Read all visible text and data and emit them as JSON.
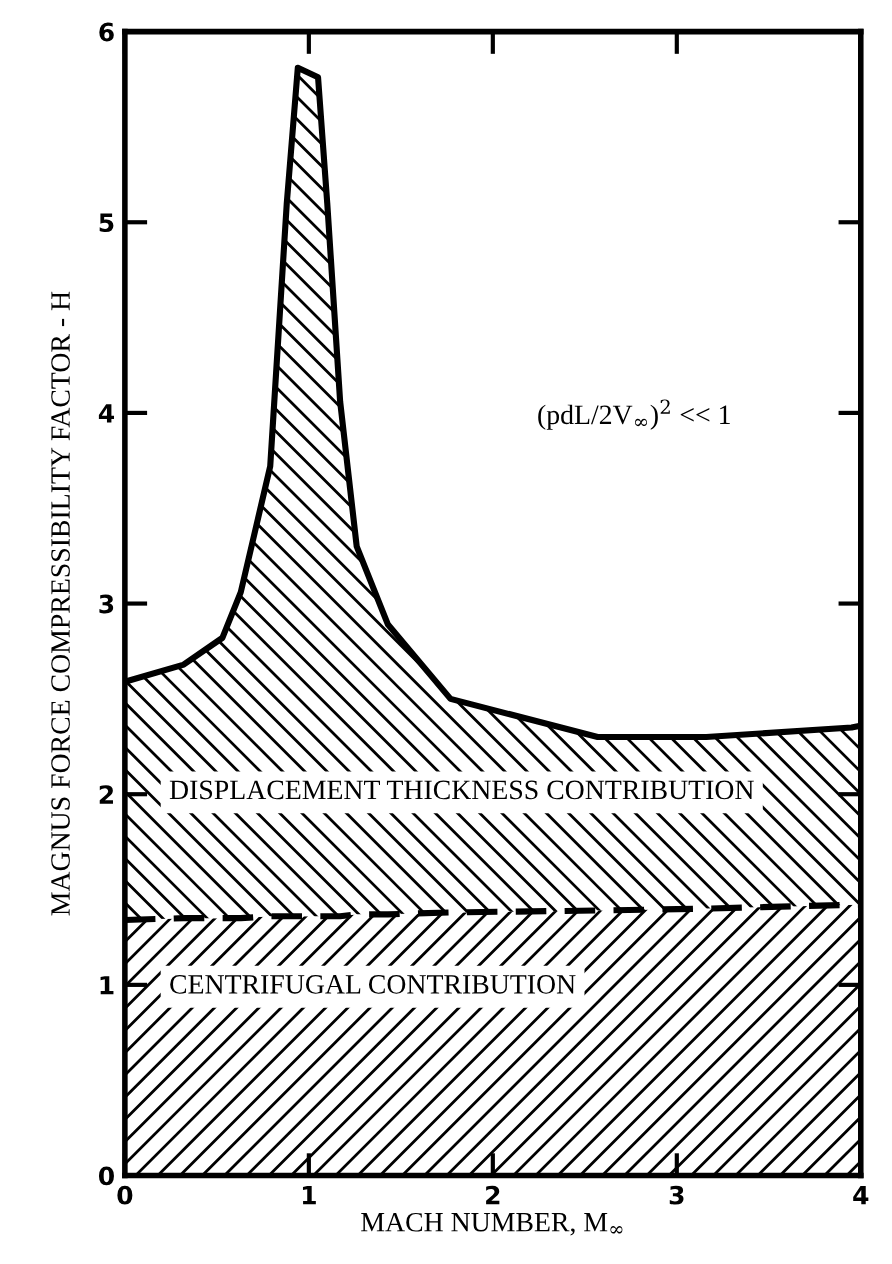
{
  "chart_data": {
    "type": "area",
    "stacked": true,
    "xlabel": "MACH NUMBER, M$_{∞}$",
    "ylabel": "MAGNUS FORCE COMPRESSIBILITY FACTOR - H",
    "x": [
      0,
      0.32,
      0.53,
      0.63,
      0.79,
      0.88,
      0.94,
      1.05,
      1.1,
      1.17,
      1.26,
      1.43,
      1.77,
      2.57,
      3.16,
      3.95,
      4.0
    ],
    "series": [
      {
        "name": "CENTRIFUGAL CONTRIBUTION",
        "color": "#000000",
        "line_style": "dashed",
        "values": [
          1.34,
          1.35,
          1.35,
          1.35,
          1.36,
          1.36,
          1.36,
          1.36,
          1.36,
          1.36,
          1.37,
          1.37,
          1.38,
          1.39,
          1.4,
          1.42,
          1.42
        ]
      },
      {
        "name": "DISPLACEMENT THICKNESS CONTRIBUTION",
        "color": "#000000",
        "line_style": "solid",
        "values": [
          1.25,
          1.33,
          1.47,
          1.71,
          2.36,
          3.74,
          4.45,
          4.4,
          3.74,
          2.7,
          1.93,
          1.52,
          1.12,
          0.91,
          0.9,
          0.93,
          0.94
        ]
      }
    ],
    "annotations": [
      "(pdL/2V$_{∞}$)$^{2}$ << 1"
    ],
    "xlim": [
      0,
      4
    ],
    "ylim": [
      0,
      6
    ],
    "xticks": [
      0,
      1,
      2,
      3,
      4
    ],
    "yticks": [
      0,
      1,
      2,
      3,
      4,
      5,
      6
    ],
    "legend": false,
    "grid": false
  }
}
